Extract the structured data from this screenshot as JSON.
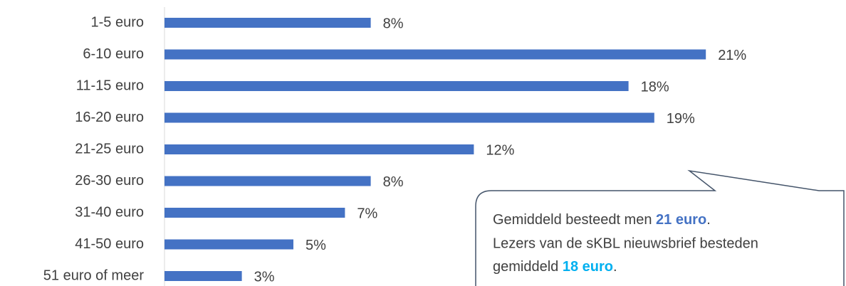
{
  "chart_data": {
    "type": "bar",
    "orientation": "horizontal",
    "categories": [
      "1-5 euro",
      "6-10 euro",
      "11-15 euro",
      "16-20 euro",
      "21-25 euro",
      "26-30 euro",
      "31-40 euro",
      "41-50 euro",
      "51 euro of meer"
    ],
    "values": [
      8,
      21,
      18,
      19,
      12,
      8,
      7,
      5,
      3
    ],
    "value_labels": [
      "8%",
      "21%",
      "18%",
      "19%",
      "12%",
      "8%",
      "7%",
      "5%",
      "3%"
    ],
    "color": "#4472c4",
    "annotation": {
      "line1": [
        "Gemiddeld besteedt men ",
        "21 euro",
        "."
      ],
      "line2": "Lezers van de sKBL nieuwsbrief besteden",
      "line3": [
        "gemiddeld ",
        "18 euro",
        "."
      ],
      "highlight1_color": "#4472c4",
      "highlight2_color": "#00b0f0"
    }
  }
}
